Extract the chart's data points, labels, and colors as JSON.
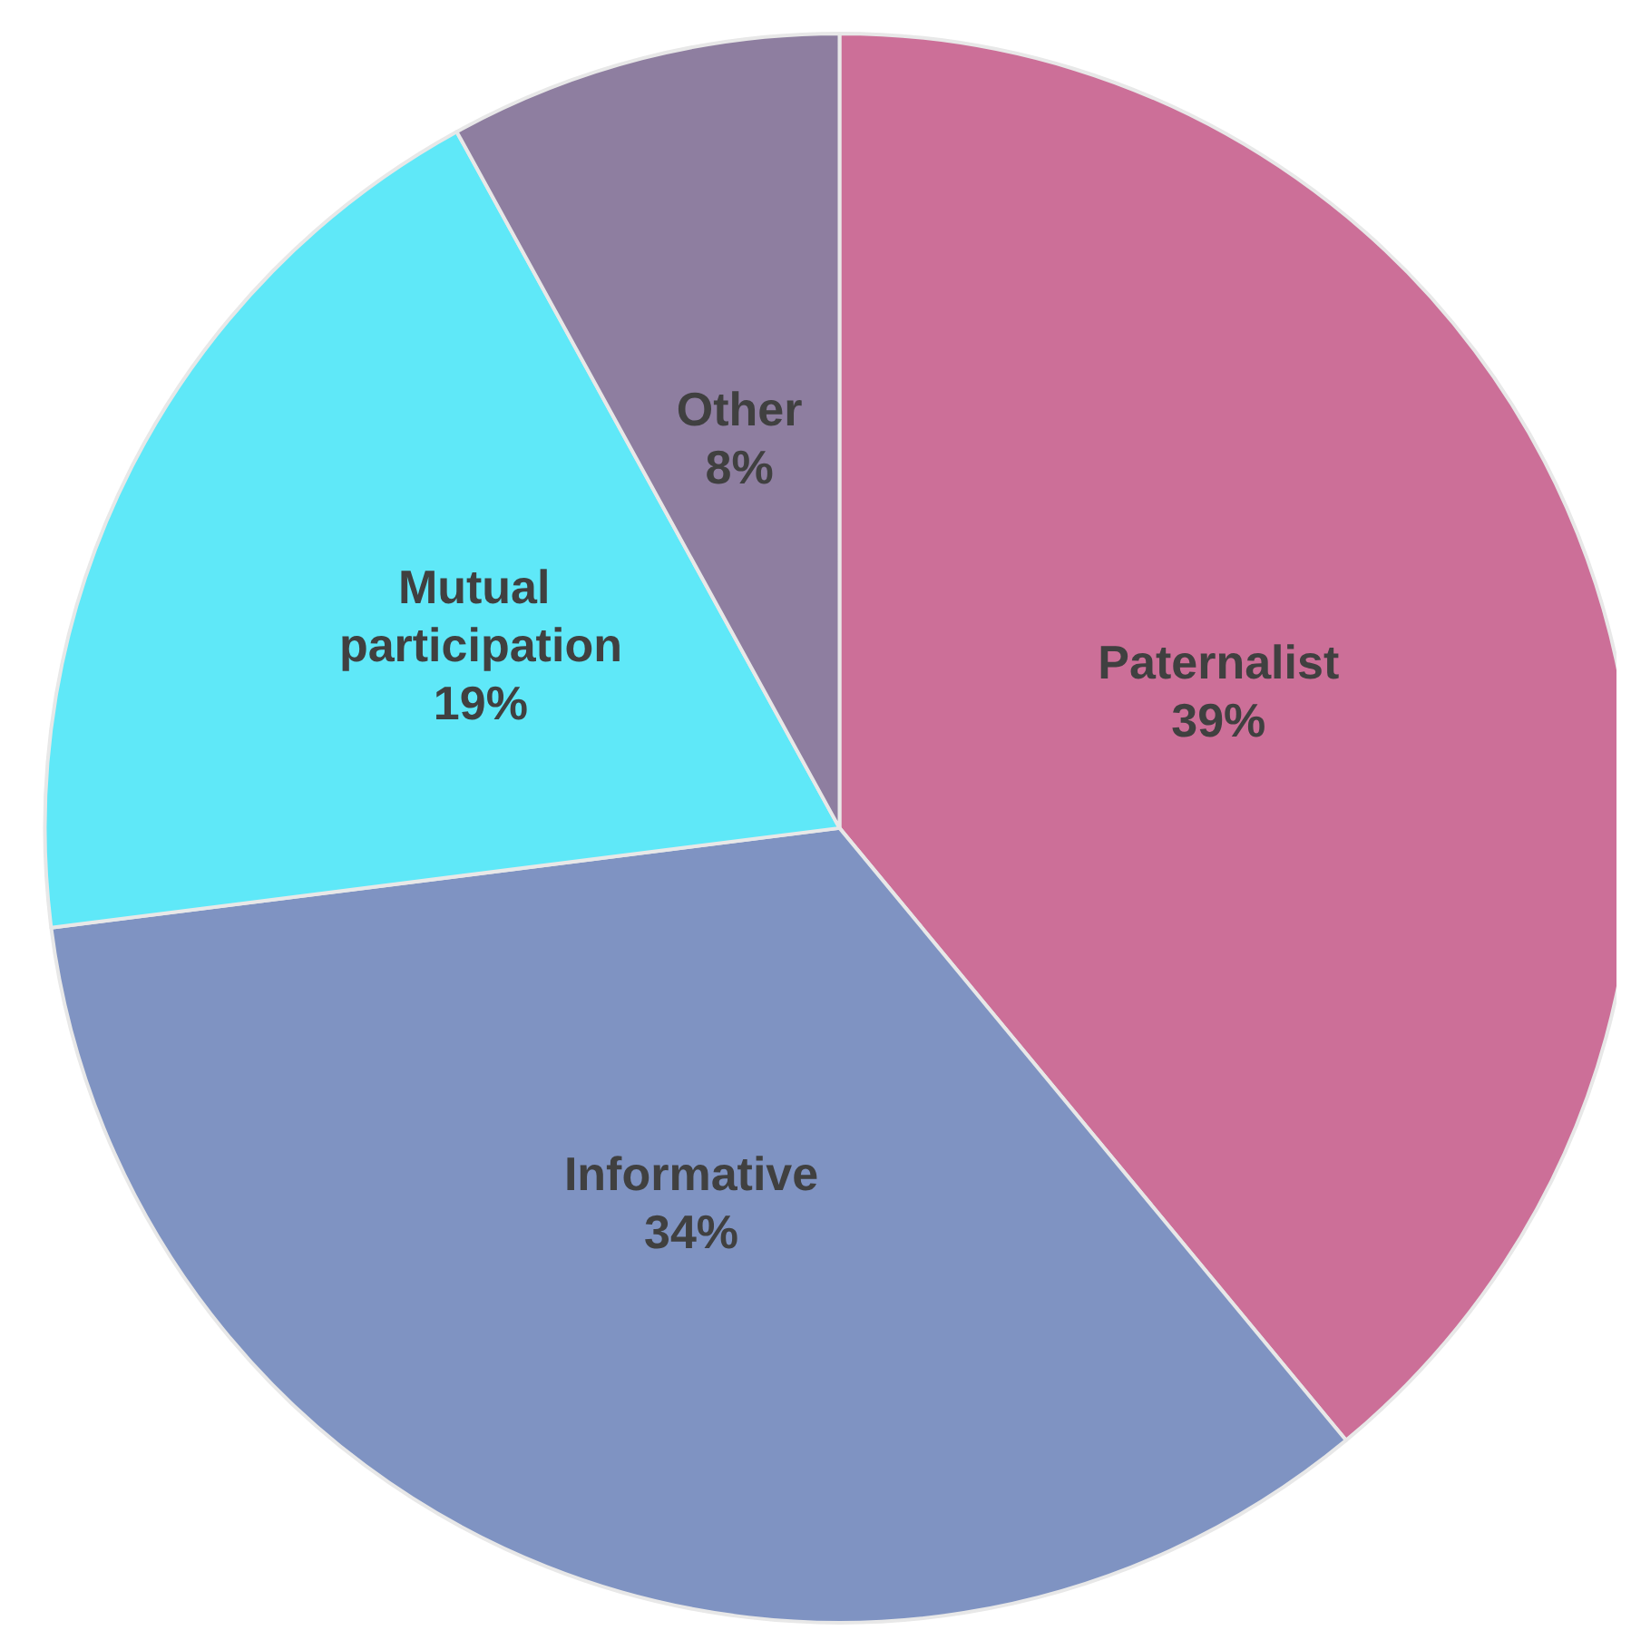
{
  "chart_data": {
    "type": "pie",
    "categories": [
      "Paternalist",
      "Informative",
      "Mutual participation",
      "Other"
    ],
    "values": [
      39,
      34,
      19,
      8
    ],
    "value_labels": [
      "39%",
      "34%",
      "19%",
      "8%"
    ],
    "colors": [
      "#cc6f98",
      "#7f93c2",
      "#5fe8f8",
      "#8e7ea0"
    ]
  }
}
